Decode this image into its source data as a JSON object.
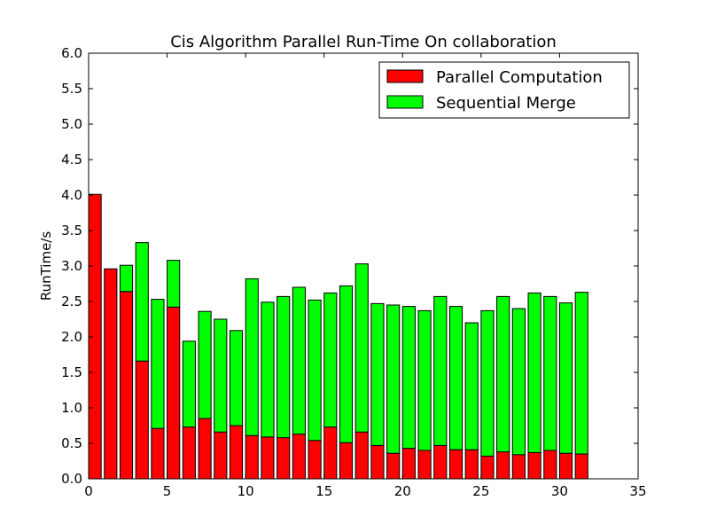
{
  "chart_data": {
    "type": "bar",
    "stacked": true,
    "title": "Cis Algorithm Parallel Run-Time On collaboration",
    "xlabel": "",
    "ylabel": "RunTime/s",
    "xlim": [
      0,
      35
    ],
    "ylim": [
      0,
      6.0
    ],
    "xticks": [
      "0",
      "5",
      "10",
      "15",
      "20",
      "25",
      "30",
      "35"
    ],
    "yticks": [
      "0.0",
      "0.5",
      "1.0",
      "1.5",
      "2.0",
      "2.5",
      "3.0",
      "3.5",
      "4.0",
      "4.5",
      "5.0",
      "5.5",
      "6.0"
    ],
    "x": [
      1,
      2,
      3,
      4,
      5,
      6,
      7,
      8,
      9,
      10,
      11,
      12,
      13,
      14,
      15,
      16,
      17,
      18,
      19,
      20,
      21,
      22,
      23,
      24,
      25,
      26,
      27,
      28,
      29,
      30,
      31,
      32
    ],
    "grid": false,
    "legend_position": "top-right",
    "series": [
      {
        "name": "Parallel Computation",
        "color": "#ff0000",
        "values": [
          4.01,
          2.96,
          2.64,
          1.66,
          0.71,
          2.42,
          0.73,
          0.85,
          0.66,
          0.75,
          0.61,
          0.59,
          0.58,
          0.63,
          0.54,
          0.73,
          0.51,
          0.66,
          0.47,
          0.36,
          0.43,
          0.4,
          0.47,
          0.41,
          0.41,
          0.32,
          0.38,
          0.34,
          0.37,
          0.4,
          0.36,
          0.35
        ]
      },
      {
        "name": "Sequential Merge",
        "color": "#00ff00",
        "values": [
          0.0,
          0.0,
          0.37,
          1.67,
          1.82,
          0.66,
          1.21,
          1.51,
          1.59,
          1.34,
          2.21,
          1.9,
          1.99,
          2.07,
          1.98,
          1.89,
          2.21,
          2.37,
          2.0,
          2.09,
          2.0,
          1.97,
          2.1,
          2.02,
          1.79,
          2.05,
          2.19,
          2.06,
          2.25,
          2.17,
          2.12,
          2.28
        ]
      }
    ]
  }
}
